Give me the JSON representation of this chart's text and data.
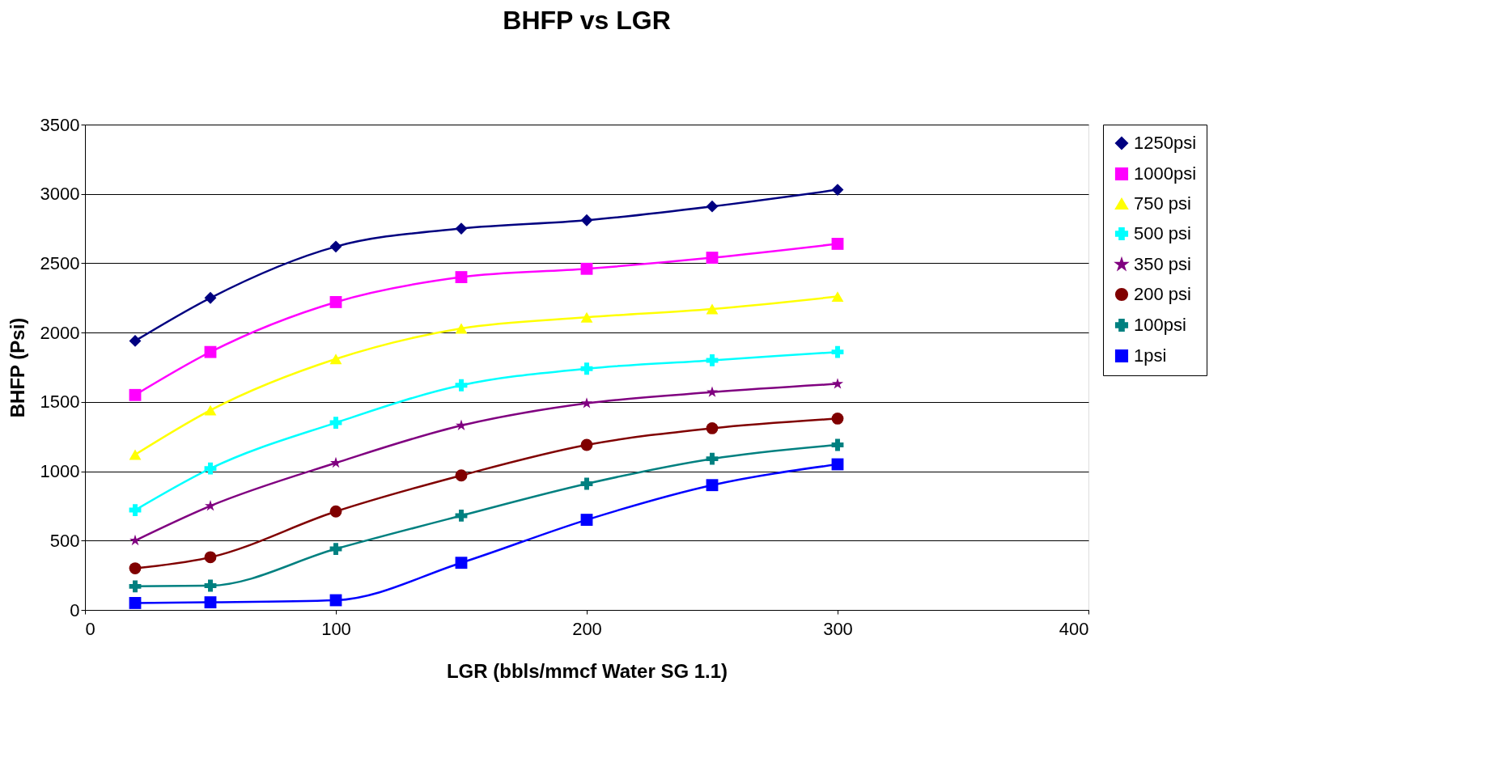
{
  "chart_data": {
    "type": "line",
    "title": "BHFP vs LGR",
    "xlabel": "LGR (bbls/mmcf Water SG 1.1)",
    "ylabel": "BHFP (Psi)",
    "x": [
      20,
      50,
      100,
      150,
      200,
      250,
      300
    ],
    "series": [
      {
        "name": "1250psi",
        "color": "#000080",
        "marker": "diamond",
        "values": [
          1940,
          2250,
          2620,
          2750,
          2810,
          2910,
          3030
        ]
      },
      {
        "name": "1000psi",
        "color": "#ff00ff",
        "marker": "square",
        "values": [
          1550,
          1860,
          2220,
          2400,
          2460,
          2540,
          2640
        ]
      },
      {
        "name": "750 psi",
        "color": "#ffff00",
        "marker": "triangle",
        "values": [
          1120,
          1440,
          1810,
          2030,
          2110,
          2170,
          2260
        ]
      },
      {
        "name": "500 psi",
        "color": "#00ffff",
        "marker": "cross",
        "values": [
          720,
          1020,
          1350,
          1620,
          1740,
          1800,
          1860
        ]
      },
      {
        "name": "350 psi",
        "color": "#800080",
        "marker": "star",
        "values": [
          500,
          750,
          1060,
          1330,
          1490,
          1570,
          1630
        ]
      },
      {
        "name": "200 psi",
        "color": "#800000",
        "marker": "circle",
        "values": [
          300,
          380,
          710,
          970,
          1190,
          1310,
          1380
        ]
      },
      {
        "name": "100psi",
        "color": "#008080",
        "marker": "cross",
        "values": [
          170,
          175,
          440,
          680,
          910,
          1090,
          1190
        ]
      },
      {
        "name": "1psi",
        "color": "#0000ff",
        "marker": "square",
        "values": [
          50,
          55,
          70,
          340,
          650,
          900,
          1050
        ]
      }
    ],
    "xlim": [
      0,
      400
    ],
    "xticks": [
      0,
      100,
      200,
      300,
      400
    ],
    "ylim": [
      0,
      3500
    ],
    "yticks": [
      0,
      500,
      1000,
      1500,
      2000,
      2500,
      3000,
      3500
    ],
    "grid": "y",
    "legend": "right"
  }
}
